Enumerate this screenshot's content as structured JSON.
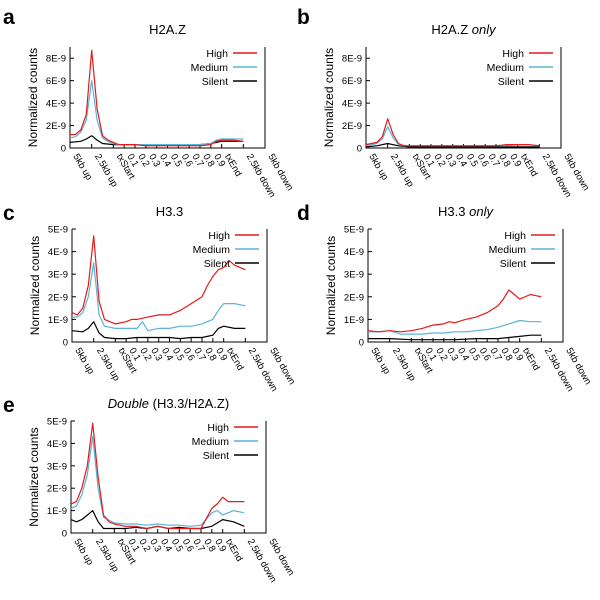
{
  "chart_data": [
    {
      "letter": "a",
      "type": "line",
      "title": "H2A.Z",
      "title_parts": [
        {
          "text": "H2A.Z",
          "italic": false
        }
      ],
      "ylabel": "Normalized counts",
      "ylim": [
        0,
        9e-09
      ],
      "yticks": [
        0,
        2e-09,
        4e-09,
        6e-09,
        8e-09
      ],
      "ytick_labels": [
        "0",
        "2E-9",
        "4E-9",
        "6E-9",
        "8E-9"
      ],
      "categories": [
        "5kb up",
        "2.5kb up",
        "txStart",
        "0.1",
        "0.2",
        "0.3",
        "0.4",
        "0.5",
        "0.6",
        "0.7",
        "0.8",
        "0.9",
        "txEnd",
        "2.5kb down",
        "5kb down"
      ],
      "category_positions": [
        0,
        2,
        4,
        5,
        6,
        7,
        8,
        9,
        10,
        11,
        12,
        13,
        14,
        16,
        18
      ],
      "xlim": [
        0,
        18
      ],
      "legend": {
        "entries": [
          "High",
          "Medium",
          "Silent"
        ],
        "placement": "top-right"
      },
      "series": [
        {
          "name": "High",
          "color": "#e41a1c",
          "x": [
            0,
            0.5,
            1,
            1.5,
            2,
            2.5,
            3,
            3.5,
            4,
            4.5,
            5,
            6,
            7,
            8,
            9,
            10,
            11,
            12,
            13,
            13.5,
            14,
            15,
            16
          ],
          "values": [
            1.2e-09,
            1.2e-09,
            1.6e-09,
            3e-09,
            8.7e-09,
            3.5e-09,
            1.1e-09,
            7e-10,
            5e-10,
            3e-10,
            3e-10,
            3e-10,
            2e-10,
            2e-10,
            2e-10,
            2e-10,
            2e-10,
            2e-10,
            3e-10,
            6e-10,
            7e-10,
            7e-10,
            6e-10
          ]
        },
        {
          "name": "Medium",
          "color": "#5ab4d6",
          "x": [
            0,
            0.5,
            1,
            1.5,
            2,
            2.5,
            3,
            3.5,
            4,
            4.5,
            5,
            6,
            7,
            8,
            9,
            10,
            11,
            12,
            13,
            13.5,
            14,
            15,
            16
          ],
          "values": [
            9e-10,
            1e-09,
            1.4e-09,
            2.5e-09,
            6e-09,
            2.5e-09,
            9e-10,
            6e-10,
            4e-10,
            3e-10,
            3e-10,
            3e-10,
            3e-10,
            3e-10,
            3e-10,
            3e-10,
            3e-10,
            3e-10,
            4e-10,
            7e-10,
            8e-10,
            8e-10,
            8e-10
          ]
        },
        {
          "name": "Silent",
          "color": "#000000",
          "x": [
            0,
            1,
            1.5,
            2,
            2.5,
            3,
            4,
            5,
            6,
            7,
            8,
            9,
            10,
            11,
            12,
            13,
            14,
            15,
            16
          ],
          "values": [
            5e-10,
            6e-10,
            8e-10,
            1.1e-09,
            7e-10,
            4e-10,
            3e-10,
            3e-10,
            3e-10,
            3e-10,
            3e-10,
            3e-10,
            3e-10,
            3e-10,
            3e-10,
            4e-10,
            6e-10,
            6e-10,
            6e-10
          ]
        }
      ]
    },
    {
      "letter": "b",
      "type": "line",
      "title": "H2A.Z only",
      "title_parts": [
        {
          "text": "H2A.Z ",
          "italic": false
        },
        {
          "text": "only",
          "italic": true
        }
      ],
      "ylabel": "Normalized counts",
      "ylim": [
        0,
        9e-09
      ],
      "yticks": [
        0,
        2e-09,
        4e-09,
        6e-09,
        8e-09
      ],
      "ytick_labels": [
        "0",
        "2E-9",
        "4E-9",
        "6E-9",
        "8E-9"
      ],
      "categories": [
        "5kb up",
        "2.5kb up",
        "txStart",
        "0.1",
        "0.2",
        "0.3",
        "0.4",
        "0.5",
        "0.6",
        "0.7",
        "0.8",
        "0.9",
        "txEnd",
        "2.5kb down",
        "5kb down"
      ],
      "category_positions": [
        0,
        2,
        4,
        5,
        6,
        7,
        8,
        9,
        10,
        11,
        12,
        13,
        14,
        16,
        18
      ],
      "xlim": [
        0,
        18
      ],
      "legend": {
        "entries": [
          "High",
          "Medium",
          "Silent"
        ],
        "placement": "top-right"
      },
      "series": [
        {
          "name": "High",
          "color": "#e41a1c",
          "x": [
            0,
            1,
            1.5,
            2,
            2.5,
            3,
            3.5,
            4,
            5,
            6,
            7,
            8,
            9,
            10,
            11,
            12,
            13,
            14,
            15,
            16
          ],
          "values": [
            3e-10,
            5e-10,
            1e-09,
            2.6e-09,
            1.2e-09,
            4e-10,
            2e-10,
            2e-10,
            2e-10,
            2e-10,
            2e-10,
            2e-10,
            2e-10,
            2e-10,
            2e-10,
            2e-10,
            3e-10,
            3e-10,
            3e-10,
            2e-10
          ]
        },
        {
          "name": "Medium",
          "color": "#5ab4d6",
          "x": [
            0,
            1,
            1.5,
            2,
            2.5,
            3,
            3.5,
            4,
            5,
            6,
            7,
            8,
            9,
            10,
            11,
            12,
            13,
            14,
            15,
            16
          ],
          "values": [
            2e-10,
            4e-10,
            8e-10,
            1.9e-09,
            9e-10,
            3e-10,
            2e-10,
            2e-10,
            2e-10,
            2e-10,
            2e-10,
            2e-10,
            2e-10,
            2e-10,
            2e-10,
            2e-10,
            2e-10,
            3e-10,
            3e-10,
            2e-10
          ]
        },
        {
          "name": "Silent",
          "color": "#000000",
          "x": [
            0,
            1,
            2,
            3,
            4,
            6,
            8,
            10,
            12,
            14,
            16
          ],
          "values": [
            1e-10,
            2e-10,
            4e-10,
            2e-10,
            1e-10,
            1e-10,
            1e-10,
            1e-10,
            1e-10,
            1e-10,
            1e-10
          ]
        }
      ]
    },
    {
      "letter": "c",
      "type": "line",
      "title": "H3.3",
      "title_parts": [
        {
          "text": "H3.3",
          "italic": false
        }
      ],
      "ylabel": "Normalized counts",
      "ylim": [
        0,
        5e-09
      ],
      "yticks": [
        0,
        1e-09,
        2e-09,
        3e-09,
        4e-09,
        5e-09
      ],
      "ytick_labels": [
        "0",
        "1E-9",
        "2E-9",
        "3E-9",
        "4E-9",
        "5E-9"
      ],
      "categories": [
        "5kb up",
        "2.5kb up",
        "txStart",
        "0.1",
        "0.2",
        "0.3",
        "0.4",
        "0.5",
        "0.6",
        "0.7",
        "0.8",
        "0.9",
        "txEnd",
        "2.5kb down",
        "5kb down"
      ],
      "category_positions": [
        0,
        2,
        4,
        5,
        6,
        7,
        8,
        9,
        10,
        11,
        12,
        13,
        14,
        16,
        18
      ],
      "xlim": [
        0,
        18
      ],
      "legend": {
        "entries": [
          "High",
          "Medium",
          "Silent"
        ],
        "placement": "top-right"
      },
      "series": [
        {
          "name": "High",
          "color": "#e41a1c",
          "x": [
            0,
            0.5,
            1,
            1.5,
            2,
            2.5,
            3,
            3.5,
            4,
            5,
            5.5,
            6,
            7,
            8,
            9,
            10,
            11,
            12,
            12.5,
            13,
            13.5,
            14,
            14.5,
            15,
            16
          ],
          "values": [
            1.3e-09,
            1.2e-09,
            1.5e-09,
            2.5e-09,
            4.7e-09,
            1.8e-09,
            1e-09,
            9e-10,
            8e-10,
            9e-10,
            1e-09,
            1e-09,
            1.1e-09,
            1.2e-09,
            1.2e-09,
            1.4e-09,
            1.7e-09,
            2e-09,
            2.5e-09,
            2.9e-09,
            3.2e-09,
            3.3e-09,
            3.6e-09,
            3.4e-09,
            3.2e-09
          ]
        },
        {
          "name": "Medium",
          "color": "#5ab4d6",
          "x": [
            0,
            0.5,
            1,
            1.5,
            2,
            2.5,
            3,
            4,
            5,
            6,
            6.5,
            7,
            8,
            9,
            10,
            11,
            12,
            13,
            13.5,
            14,
            15,
            16
          ],
          "values": [
            1.1e-09,
            1.1e-09,
            1.3e-09,
            2e-09,
            3.5e-09,
            1.2e-09,
            7e-10,
            6e-10,
            6e-10,
            6e-10,
            9e-10,
            5e-10,
            6e-10,
            6e-10,
            7e-10,
            7e-10,
            8e-10,
            1e-09,
            1.4e-09,
            1.7e-09,
            1.7e-09,
            1.6e-09
          ]
        },
        {
          "name": "Silent",
          "color": "#000000",
          "x": [
            0,
            1,
            1.5,
            2,
            2.5,
            3,
            4,
            5,
            6,
            7,
            8,
            9,
            10,
            11,
            12,
            13,
            13.5,
            14,
            15,
            16
          ],
          "values": [
            5e-10,
            4.5e-10,
            6e-10,
            9e-10,
            4e-10,
            2e-10,
            1.5e-10,
            1.5e-10,
            2e-10,
            2e-10,
            2e-10,
            2e-10,
            1.5e-10,
            2e-10,
            2e-10,
            3e-10,
            6e-10,
            7e-10,
            6e-10,
            6e-10
          ]
        }
      ]
    },
    {
      "letter": "d",
      "type": "line",
      "title": "H3.3 only",
      "title_parts": [
        {
          "text": "H3.3 ",
          "italic": false
        },
        {
          "text": "only",
          "italic": true
        }
      ],
      "ylabel": "Normalized counts",
      "ylim": [
        0,
        5e-09
      ],
      "yticks": [
        0,
        1e-09,
        2e-09,
        3e-09,
        4e-09,
        5e-09
      ],
      "ytick_labels": [
        "0",
        "1E-9",
        "2E-9",
        "3E-9",
        "4E-9",
        "5E-9"
      ],
      "categories": [
        "5kb up",
        "2.5kb up",
        "txStart",
        "0.1",
        "0.2",
        "0.3",
        "0.4",
        "0.5",
        "0.6",
        "0.7",
        "0.8",
        "0.9",
        "txEnd",
        "2.5kb down",
        "5kb down"
      ],
      "category_positions": [
        0,
        2,
        4,
        5,
        6,
        7,
        8,
        9,
        10,
        11,
        12,
        13,
        14,
        16,
        18
      ],
      "xlim": [
        0,
        18
      ],
      "legend": {
        "entries": [
          "High",
          "Medium",
          "Silent"
        ],
        "placement": "top-right"
      },
      "series": [
        {
          "name": "High",
          "color": "#e41a1c",
          "x": [
            0,
            1,
            2,
            3,
            4,
            5,
            6,
            7,
            7.5,
            8,
            9,
            10,
            11,
            12,
            12.5,
            13,
            13.5,
            14,
            15,
            16
          ],
          "values": [
            5e-10,
            4.5e-10,
            5e-10,
            4.5e-10,
            5e-10,
            6e-10,
            7.5e-10,
            8e-10,
            9e-10,
            8.5e-10,
            1e-09,
            1.1e-09,
            1.3e-09,
            1.6e-09,
            1.9e-09,
            2.3e-09,
            2.1e-09,
            1.9e-09,
            2.1e-09,
            2e-09
          ]
        },
        {
          "name": "Medium",
          "color": "#5ab4d6",
          "x": [
            0,
            1,
            2,
            3,
            4,
            5,
            6,
            7,
            8,
            9,
            10,
            11,
            12,
            13,
            14,
            15,
            16
          ],
          "values": [
            4.5e-10,
            4.5e-10,
            5e-10,
            3.5e-10,
            3.5e-10,
            3.5e-10,
            4e-10,
            4e-10,
            4.5e-10,
            4.5e-10,
            5e-10,
            5.5e-10,
            6.5e-10,
            8e-10,
            9.5e-10,
            9e-10,
            9e-10
          ]
        },
        {
          "name": "Silent",
          "color": "#000000",
          "x": [
            0,
            2,
            4,
            6,
            8,
            10,
            12,
            13,
            14,
            15,
            16
          ],
          "values": [
            1.5e-10,
            1.5e-10,
            1e-10,
            1e-10,
            1e-10,
            1.5e-10,
            1.5e-10,
            2e-10,
            2.5e-10,
            3e-10,
            3e-10
          ]
        }
      ]
    },
    {
      "letter": "e",
      "type": "line",
      "title": "Double (H3.3/H2A.Z)",
      "title_parts": [
        {
          "text": "Double",
          "italic": true
        },
        {
          "text": " (H3.3/H2A.Z)",
          "italic": false
        }
      ],
      "ylabel": "Normalized counts",
      "ylim": [
        0,
        5e-09
      ],
      "yticks": [
        0,
        1e-09,
        2e-09,
        3e-09,
        4e-09,
        5e-09
      ],
      "ytick_labels": [
        "0",
        "1E-9",
        "2E-9",
        "3E-9",
        "4E-9",
        "5E-9"
      ],
      "categories": [
        "5kb up",
        "2.5kb up",
        "txStart",
        "0.1",
        "0.2",
        "0.3",
        "0.4",
        "0.5",
        "0.6",
        "0.7",
        "0.8",
        "0.9",
        "txEnd",
        "2.5kb down",
        "5kb down"
      ],
      "category_positions": [
        0,
        2,
        4,
        5,
        6,
        7,
        8,
        9,
        10,
        11,
        12,
        13,
        14,
        16,
        18
      ],
      "xlim": [
        0,
        18
      ],
      "legend": {
        "entries": [
          "High",
          "Medium",
          "Silent"
        ],
        "placement": "top-right"
      },
      "series": [
        {
          "name": "High",
          "color": "#e41a1c",
          "x": [
            0,
            0.5,
            1,
            1.5,
            2,
            2.5,
            3,
            3.5,
            4,
            5,
            6,
            7,
            8,
            9,
            10,
            11,
            12,
            13,
            13.5,
            14,
            14.5,
            15,
            16
          ],
          "values": [
            1.3e-09,
            1.4e-09,
            2e-09,
            3e-09,
            4.9e-09,
            2.5e-09,
            8e-10,
            5e-10,
            4e-10,
            3e-10,
            3e-10,
            2e-10,
            3e-10,
            2e-10,
            2e-10,
            2e-10,
            2e-10,
            1.1e-09,
            1.3e-09,
            1.6e-09,
            1.4e-09,
            1.4e-09,
            1.4e-09
          ]
        },
        {
          "name": "Medium",
          "color": "#5ab4d6",
          "x": [
            0,
            0.5,
            1,
            1.5,
            2,
            2.5,
            3,
            4,
            5,
            6,
            7,
            8,
            9,
            10,
            11,
            12,
            13,
            13.5,
            14,
            14.5,
            15,
            16
          ],
          "values": [
            1.1e-09,
            1.2e-09,
            1.7e-09,
            2.6e-09,
            4.3e-09,
            2e-09,
            7e-10,
            4.5e-10,
            4e-10,
            4e-10,
            3.5e-10,
            4e-10,
            3.5e-10,
            3.5e-10,
            3e-10,
            3.5e-10,
            9e-10,
            1e-09,
            8e-10,
            9e-10,
            1e-09,
            9e-10
          ]
        },
        {
          "name": "Silent",
          "color": "#000000",
          "x": [
            0,
            0.5,
            1,
            1.5,
            2,
            2.5,
            3,
            4,
            5,
            6,
            7,
            8,
            9,
            10,
            11,
            12,
            13,
            14,
            15,
            16
          ],
          "values": [
            6e-10,
            5e-10,
            6e-10,
            8e-10,
            1e-09,
            5e-10,
            2e-10,
            2e-10,
            2e-10,
            2.5e-10,
            2e-10,
            3e-10,
            2e-10,
            2.5e-10,
            2e-10,
            2e-10,
            3e-10,
            6e-10,
            5e-10,
            3e-10
          ]
        }
      ]
    }
  ]
}
